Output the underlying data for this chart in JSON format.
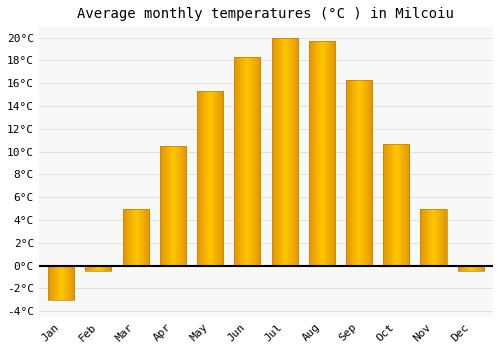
{
  "months": [
    "Jan",
    "Feb",
    "Mar",
    "Apr",
    "May",
    "Jun",
    "Jul",
    "Aug",
    "Sep",
    "Oct",
    "Nov",
    "Dec"
  ],
  "values": [
    -3.0,
    -0.5,
    5.0,
    10.5,
    15.3,
    18.3,
    20.0,
    19.7,
    16.3,
    10.7,
    5.0,
    -0.5
  ],
  "bar_color_light": "#FFD966",
  "bar_color_dark": "#FFA500",
  "bar_edge_color": "#B8860B",
  "title": "Average monthly temperatures (°C ) in Milcoiu",
  "ylim": [
    -4.5,
    21
  ],
  "yticks": [
    -4,
    -2,
    0,
    2,
    4,
    6,
    8,
    10,
    12,
    14,
    16,
    18,
    20
  ],
  "background_color": "#ffffff",
  "plot_bg_color": "#f8f8f8",
  "grid_color": "#dddddd",
  "title_fontsize": 10,
  "tick_fontsize": 8,
  "bar_width": 0.7
}
